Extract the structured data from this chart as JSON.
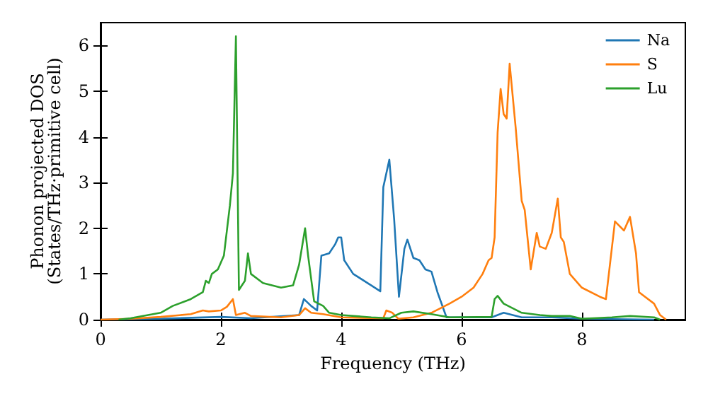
{
  "chart_data": {
    "type": "line",
    "xlabel": "Frequency (THz)",
    "ylabel": "Phonon projected DOS\n(States/THz·primitive cell)",
    "xlim": [
      0,
      9.72
    ],
    "ylim": [
      0,
      6.5
    ],
    "xticks": [
      0,
      2,
      4,
      6,
      8
    ],
    "yticks": [
      0,
      1,
      2,
      3,
      4,
      5,
      6
    ],
    "grid": false,
    "legend": "top right",
    "marker": "none",
    "line_style": "solid",
    "series": [
      {
        "name": "Na",
        "color": "#1f77b4",
        "x": [
          0,
          1,
          2,
          2.5,
          3.3,
          3.38,
          3.5,
          3.6,
          3.67,
          3.8,
          3.9,
          3.95,
          4.0,
          4.05,
          4.2,
          4.5,
          4.65,
          4.7,
          4.8,
          4.88,
          4.96,
          5.05,
          5.1,
          5.2,
          5.3,
          5.4,
          5.5,
          5.6,
          5.75,
          6.5,
          6.7,
          7.0,
          7.5,
          8.0,
          9.2
        ],
        "values": [
          0,
          0.02,
          0.06,
          0.03,
          0.1,
          0.45,
          0.3,
          0.2,
          1.4,
          1.45,
          1.65,
          1.8,
          1.8,
          1.3,
          1.0,
          0.75,
          0.62,
          2.9,
          3.5,
          2.2,
          0.5,
          1.55,
          1.75,
          1.35,
          1.3,
          1.1,
          1.05,
          0.6,
          0.05,
          0.05,
          0.15,
          0.05,
          0.05,
          0.02,
          0
        ]
      },
      {
        "name": "S",
        "color": "#ff7f0e",
        "x": [
          0,
          0.5,
          1.0,
          1.5,
          1.7,
          1.8,
          2.0,
          2.1,
          2.2,
          2.25,
          2.4,
          2.5,
          3.0,
          3.3,
          3.4,
          3.5,
          3.7,
          4.0,
          4.7,
          4.75,
          4.85,
          4.95,
          5.2,
          5.5,
          5.8,
          6.0,
          6.2,
          6.35,
          6.45,
          6.5,
          6.55,
          6.6,
          6.65,
          6.7,
          6.75,
          6.8,
          6.9,
          7.0,
          7.05,
          7.15,
          7.25,
          7.3,
          7.4,
          7.5,
          7.6,
          7.65,
          7.7,
          7.8,
          8.0,
          8.3,
          8.4,
          8.55,
          8.7,
          8.8,
          8.9,
          8.95,
          9.2,
          9.3,
          9.4
        ],
        "values": [
          0,
          0.02,
          0.06,
          0.12,
          0.2,
          0.18,
          0.2,
          0.28,
          0.45,
          0.1,
          0.15,
          0.08,
          0.05,
          0.1,
          0.25,
          0.15,
          0.12,
          0.05,
          0.03,
          0.2,
          0.15,
          0.02,
          0.05,
          0.15,
          0.35,
          0.5,
          0.7,
          1.0,
          1.3,
          1.35,
          1.8,
          4.1,
          5.05,
          4.5,
          4.4,
          5.6,
          4.2,
          2.6,
          2.4,
          1.1,
          1.9,
          1.6,
          1.55,
          1.9,
          2.65,
          1.8,
          1.7,
          1.0,
          0.7,
          0.5,
          0.45,
          2.15,
          1.95,
          2.25,
          1.45,
          0.6,
          0.35,
          0.1,
          0
        ]
      },
      {
        "name": "Lu",
        "color": "#2ca02c",
        "x": [
          0.3,
          0.5,
          1.0,
          1.2,
          1.5,
          1.7,
          1.75,
          1.8,
          1.85,
          1.95,
          2.05,
          2.15,
          2.2,
          2.25,
          2.3,
          2.4,
          2.45,
          2.5,
          2.7,
          3.0,
          3.2,
          3.3,
          3.4,
          3.45,
          3.55,
          3.7,
          3.8,
          4.0,
          4.5,
          4.8,
          5.0,
          5.2,
          5.5,
          5.8,
          6.5,
          6.55,
          6.6,
          6.7,
          7.0,
          7.3,
          7.5,
          7.8,
          8.0,
          8.5,
          8.8,
          9.2,
          9.3
        ],
        "values": [
          0,
          0.03,
          0.15,
          0.3,
          0.45,
          0.6,
          0.85,
          0.8,
          1.0,
          1.1,
          1.4,
          2.5,
          3.2,
          6.2,
          0.65,
          0.85,
          1.45,
          1.0,
          0.8,
          0.7,
          0.75,
          1.2,
          2.0,
          1.4,
          0.4,
          0.3,
          0.15,
          0.1,
          0.05,
          0.03,
          0.15,
          0.18,
          0.12,
          0.05,
          0.06,
          0.45,
          0.52,
          0.35,
          0.15,
          0.1,
          0.08,
          0.08,
          0.02,
          0.05,
          0.08,
          0.05,
          0
        ]
      }
    ]
  }
}
